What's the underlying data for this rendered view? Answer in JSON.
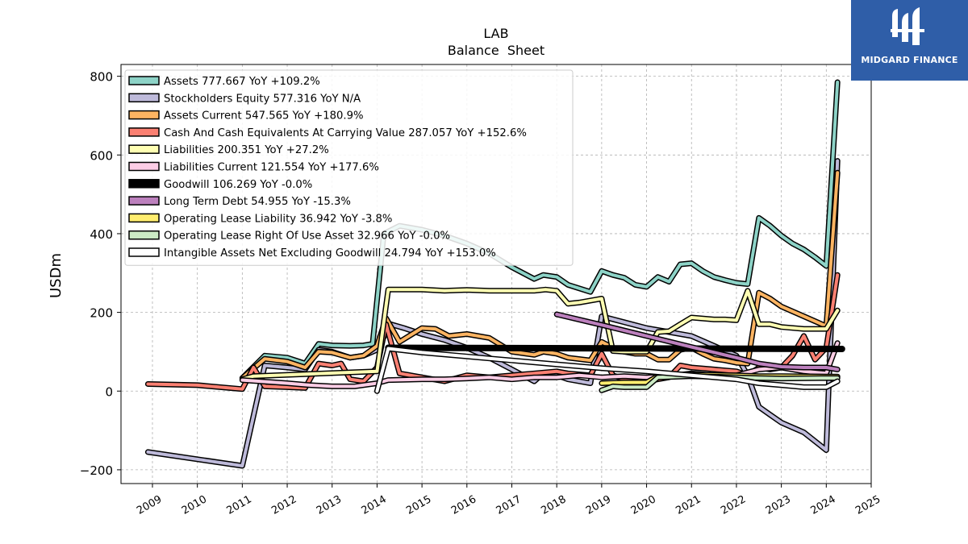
{
  "chart_data": {
    "type": "line",
    "title": "LAB",
    "subtitle": "Balance  Sheet",
    "ylabel": "USDm",
    "xlabel": "",
    "xlim": [
      2008.3,
      2025.0
    ],
    "ylim": [
      -235,
      830
    ],
    "yticks": [
      -200,
      0,
      200,
      400,
      600,
      800
    ],
    "ytick_labels": [
      "−200",
      "0",
      "200",
      "400",
      "600",
      "800"
    ],
    "xticks": [
      2009,
      2010,
      2011,
      2012,
      2013,
      2014,
      2015,
      2016,
      2017,
      2018,
      2019,
      2020,
      2021,
      2022,
      2023,
      2024,
      2025
    ],
    "xtick_labels": [
      "2009",
      "2010",
      "2011",
      "2012",
      "2013",
      "2014",
      "2015",
      "2016",
      "2017",
      "2018",
      "2019",
      "2020",
      "2021",
      "2022",
      "2023",
      "2024",
      "2025"
    ],
    "grid": true,
    "legend_position": "upper-left",
    "series": [
      {
        "name": "Assets",
        "legend": "Assets  777.667 YoY +109.2%",
        "color": "#8dd3c7",
        "width": 4,
        "points": [
          [
            2011.0,
            33
          ],
          [
            2011.5,
            90
          ],
          [
            2012.0,
            85
          ],
          [
            2012.4,
            70
          ],
          [
            2012.7,
            120
          ],
          [
            2013.0,
            116
          ],
          [
            2013.4,
            115
          ],
          [
            2013.7,
            116
          ],
          [
            2013.9,
            120
          ],
          [
            2014.15,
            400
          ],
          [
            2014.5,
            420
          ],
          [
            2015.0,
            410
          ],
          [
            2015.5,
            395
          ],
          [
            2016.0,
            375
          ],
          [
            2016.5,
            350
          ],
          [
            2017.0,
            315
          ],
          [
            2017.5,
            285
          ],
          [
            2017.7,
            295
          ],
          [
            2018.0,
            290
          ],
          [
            2018.25,
            270
          ],
          [
            2018.75,
            252
          ],
          [
            2019.0,
            305
          ],
          [
            2019.25,
            295
          ],
          [
            2019.5,
            288
          ],
          [
            2019.75,
            270
          ],
          [
            2020.0,
            265
          ],
          [
            2020.25,
            290
          ],
          [
            2020.5,
            278
          ],
          [
            2020.75,
            322
          ],
          [
            2021.0,
            325
          ],
          [
            2021.25,
            305
          ],
          [
            2021.5,
            290
          ],
          [
            2021.75,
            282
          ],
          [
            2022.0,
            275
          ],
          [
            2022.25,
            272
          ],
          [
            2022.5,
            440
          ],
          [
            2022.75,
            420
          ],
          [
            2023.0,
            395
          ],
          [
            2023.25,
            375
          ],
          [
            2023.5,
            360
          ],
          [
            2023.75,
            340
          ],
          [
            2024.0,
            318
          ],
          [
            2024.25,
            785
          ]
        ]
      },
      {
        "name": "Stockholders Equity",
        "legend": "Stockholders Equity  577.316 YoY N/A",
        "color": "#bebada",
        "width": 4,
        "points": [
          [
            2008.9,
            -155
          ],
          [
            2011.0,
            -190
          ],
          [
            2011.5,
            65
          ],
          [
            2012.0,
            60
          ],
          [
            2012.4,
            55
          ],
          [
            2012.7,
            105
          ],
          [
            2013.0,
            100
          ],
          [
            2013.4,
            85
          ],
          [
            2013.7,
            90
          ],
          [
            2014.0,
            105
          ],
          [
            2014.3,
            170
          ],
          [
            2014.6,
            160
          ],
          [
            2015.0,
            145
          ],
          [
            2015.5,
            130
          ],
          [
            2016.0,
            110
          ],
          [
            2016.5,
            85
          ],
          [
            2017.0,
            55
          ],
          [
            2017.5,
            25
          ],
          [
            2017.7,
            45
          ],
          [
            2018.0,
            40
          ],
          [
            2018.25,
            30
          ],
          [
            2018.75,
            20
          ],
          [
            2019.0,
            190
          ],
          [
            2019.5,
            175
          ],
          [
            2020.0,
            160
          ],
          [
            2020.5,
            150
          ],
          [
            2021.0,
            140
          ],
          [
            2021.5,
            115
          ],
          [
            2022.0,
            90
          ],
          [
            2022.25,
            40
          ],
          [
            2022.5,
            -40
          ],
          [
            2022.75,
            -60
          ],
          [
            2023.0,
            -80
          ],
          [
            2023.5,
            -105
          ],
          [
            2024.0,
            -150
          ],
          [
            2024.25,
            585
          ]
        ]
      },
      {
        "name": "Assets Current",
        "legend": "Assets Current  547.565 YoY +180.9%",
        "color": "#fdb462",
        "width": 4,
        "points": [
          [
            2011.0,
            33
          ],
          [
            2011.5,
            82
          ],
          [
            2012.0,
            75
          ],
          [
            2012.4,
            60
          ],
          [
            2012.7,
            100
          ],
          [
            2013.0,
            98
          ],
          [
            2013.4,
            85
          ],
          [
            2013.7,
            90
          ],
          [
            2014.0,
            115
          ],
          [
            2014.2,
            185
          ],
          [
            2014.5,
            125
          ],
          [
            2015.0,
            160
          ],
          [
            2015.3,
            158
          ],
          [
            2015.6,
            140
          ],
          [
            2016.0,
            145
          ],
          [
            2016.5,
            135
          ],
          [
            2017.0,
            100
          ],
          [
            2017.5,
            92
          ],
          [
            2017.7,
            100
          ],
          [
            2018.0,
            95
          ],
          [
            2018.25,
            85
          ],
          [
            2018.75,
            78
          ],
          [
            2019.0,
            125
          ],
          [
            2019.25,
            110
          ],
          [
            2019.5,
            100
          ],
          [
            2019.75,
            95
          ],
          [
            2020.0,
            95
          ],
          [
            2020.25,
            80
          ],
          [
            2020.5,
            80
          ],
          [
            2020.75,
            105
          ],
          [
            2021.0,
            110
          ],
          [
            2021.25,
            95
          ],
          [
            2021.5,
            82
          ],
          [
            2021.75,
            78
          ],
          [
            2022.0,
            72
          ],
          [
            2022.25,
            70
          ],
          [
            2022.5,
            250
          ],
          [
            2022.75,
            235
          ],
          [
            2023.0,
            215
          ],
          [
            2023.5,
            190
          ],
          [
            2024.0,
            165
          ],
          [
            2024.25,
            555
          ]
        ]
      },
      {
        "name": "Cash And Cash Equivalents At Carrying Value",
        "legend": "Cash And Cash Equivalents At Carrying Value  287.057 YoY +152.6%",
        "color": "#fb8072",
        "width": 4,
        "points": [
          [
            2008.9,
            18
          ],
          [
            2010.0,
            15
          ],
          [
            2011.0,
            5
          ],
          [
            2011.25,
            60
          ],
          [
            2011.5,
            12
          ],
          [
            2012.0,
            10
          ],
          [
            2012.4,
            8
          ],
          [
            2012.7,
            70
          ],
          [
            2013.0,
            65
          ],
          [
            2013.2,
            70
          ],
          [
            2013.4,
            30
          ],
          [
            2013.7,
            25
          ],
          [
            2014.0,
            60
          ],
          [
            2014.2,
            170
          ],
          [
            2014.5,
            45
          ],
          [
            2015.0,
            35
          ],
          [
            2015.5,
            25
          ],
          [
            2016.0,
            40
          ],
          [
            2016.5,
            35
          ],
          [
            2017.0,
            40
          ],
          [
            2017.5,
            45
          ],
          [
            2018.0,
            50
          ],
          [
            2018.25,
            45
          ],
          [
            2018.75,
            40
          ],
          [
            2019.0,
            95
          ],
          [
            2019.25,
            40
          ],
          [
            2019.5,
            30
          ],
          [
            2019.75,
            35
          ],
          [
            2020.0,
            25
          ],
          [
            2020.5,
            35
          ],
          [
            2020.75,
            65
          ],
          [
            2021.0,
            60
          ],
          [
            2021.5,
            55
          ],
          [
            2022.0,
            50
          ],
          [
            2022.25,
            40
          ],
          [
            2022.5,
            60
          ],
          [
            2022.75,
            55
          ],
          [
            2023.0,
            60
          ],
          [
            2023.25,
            90
          ],
          [
            2023.5,
            140
          ],
          [
            2023.75,
            80
          ],
          [
            2024.0,
            110
          ],
          [
            2024.25,
            295
          ]
        ]
      },
      {
        "name": "Liabilities",
        "legend": "Liabilities  200.351 YoY +27.2%",
        "color": "#ffffb3",
        "width": 4,
        "points": [
          [
            2011.0,
            30
          ],
          [
            2011.25,
            38
          ],
          [
            2014.0,
            50
          ],
          [
            2014.25,
            258
          ],
          [
            2015.0,
            258
          ],
          [
            2015.5,
            255
          ],
          [
            2016.0,
            257
          ],
          [
            2016.5,
            255
          ],
          [
            2017.0,
            255
          ],
          [
            2017.5,
            255
          ],
          [
            2017.75,
            258
          ],
          [
            2018.0,
            255
          ],
          [
            2018.25,
            222
          ],
          [
            2018.5,
            225
          ],
          [
            2019.0,
            235
          ],
          [
            2019.25,
            102
          ],
          [
            2019.5,
            100
          ],
          [
            2020.0,
            100
          ],
          [
            2020.25,
            150
          ],
          [
            2020.5,
            152
          ],
          [
            2020.75,
            170
          ],
          [
            2021.0,
            187
          ],
          [
            2021.5,
            182
          ],
          [
            2021.75,
            182
          ],
          [
            2022.0,
            180
          ],
          [
            2022.25,
            255
          ],
          [
            2022.5,
            170
          ],
          [
            2022.75,
            170
          ],
          [
            2023.0,
            163
          ],
          [
            2023.5,
            158
          ],
          [
            2024.0,
            158
          ],
          [
            2024.25,
            205
          ]
        ]
      },
      {
        "name": "Liabilities Current",
        "legend": "Liabilities Current  121.554 YoY +177.6%",
        "color": "#fccde5",
        "width": 4,
        "points": [
          [
            2011.0,
            28
          ],
          [
            2012.0,
            20
          ],
          [
            2012.5,
            15
          ],
          [
            2013.0,
            12
          ],
          [
            2013.5,
            12
          ],
          [
            2014.0,
            20
          ],
          [
            2014.25,
            28
          ],
          [
            2015.0,
            30
          ],
          [
            2015.5,
            30
          ],
          [
            2016.0,
            32
          ],
          [
            2016.5,
            35
          ],
          [
            2017.0,
            30
          ],
          [
            2017.5,
            35
          ],
          [
            2018.0,
            35
          ],
          [
            2018.5,
            40
          ],
          [
            2019.0,
            35
          ],
          [
            2019.5,
            38
          ],
          [
            2020.0,
            35
          ],
          [
            2020.5,
            38
          ],
          [
            2021.0,
            45
          ],
          [
            2021.5,
            40
          ],
          [
            2022.0,
            40
          ],
          [
            2022.5,
            55
          ],
          [
            2023.0,
            60
          ],
          [
            2023.5,
            50
          ],
          [
            2024.0,
            45
          ],
          [
            2024.25,
            122
          ]
        ]
      },
      {
        "name": "Goodwill",
        "legend": "Goodwill  106.269 YoY -0.0%",
        "color": "#000000",
        "width": 8,
        "points": [
          [
            2014.25,
            110
          ],
          [
            2024.35,
            107
          ]
        ]
      },
      {
        "name": "Long Term Debt",
        "legend": "Long Term Debt  54.955 YoY -15.3%",
        "color": "#bc80bd",
        "width": 4,
        "points": [
          [
            2018.0,
            195
          ],
          [
            2019.0,
            168
          ],
          [
            2020.0,
            140
          ],
          [
            2021.0,
            112
          ],
          [
            2022.0,
            85
          ],
          [
            2022.5,
            70
          ],
          [
            2023.0,
            62
          ],
          [
            2023.5,
            60
          ],
          [
            2024.0,
            60
          ],
          [
            2024.25,
            55
          ]
        ]
      },
      {
        "name": "Operating Lease Liability",
        "legend": "Operating Lease Liability  36.942 YoY -3.8%",
        "color": "#ffed6f",
        "width": 4,
        "points": [
          [
            2019.0,
            20
          ],
          [
            2019.5,
            22
          ],
          [
            2020.0,
            22
          ],
          [
            2020.25,
            38
          ],
          [
            2021.0,
            42
          ],
          [
            2022.0,
            40
          ],
          [
            2022.5,
            38
          ],
          [
            2023.0,
            38
          ],
          [
            2024.0,
            37
          ],
          [
            2024.25,
            37
          ]
        ]
      },
      {
        "name": "Operating Lease Right Of Use Asset",
        "legend": "Operating Lease Right Of Use Asset  32.966 YoY -0.0%",
        "color": "#ccebc5",
        "width": 4,
        "points": [
          [
            2019.0,
            2
          ],
          [
            2019.25,
            12
          ],
          [
            2019.5,
            10
          ],
          [
            2020.0,
            10
          ],
          [
            2020.25,
            35
          ],
          [
            2021.0,
            38
          ],
          [
            2022.0,
            35
          ],
          [
            2022.5,
            33
          ],
          [
            2023.0,
            32
          ],
          [
            2024.0,
            33
          ],
          [
            2024.25,
            33
          ]
        ]
      },
      {
        "name": "Intangible Assets Net Excluding Goodwill",
        "legend": "Intangible Assets Net Excluding Goodwill  24.794 YoY +153.0%",
        "color": "#ffffff",
        "width": 4,
        "points": [
          [
            2014.0,
            0
          ],
          [
            2014.25,
            108
          ],
          [
            2015.0,
            98
          ],
          [
            2016.0,
            88
          ],
          [
            2017.0,
            78
          ],
          [
            2018.0,
            68
          ],
          [
            2019.0,
            58
          ],
          [
            2020.0,
            50
          ],
          [
            2021.0,
            40
          ],
          [
            2022.0,
            30
          ],
          [
            2022.5,
            20
          ],
          [
            2023.0,
            15
          ],
          [
            2023.5,
            10
          ],
          [
            2024.0,
            10
          ],
          [
            2024.25,
            25
          ]
        ]
      }
    ]
  },
  "logo": {
    "text": "MIDGARD FINANCE"
  }
}
